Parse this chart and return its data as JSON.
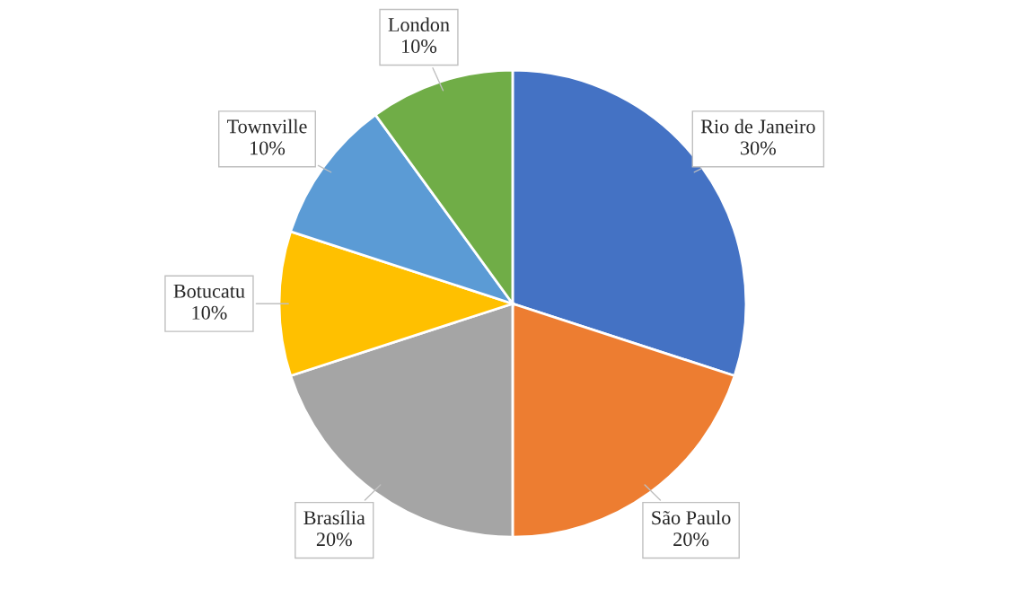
{
  "chart_data": {
    "type": "pie",
    "categories": [
      "Rio de Janeiro",
      "São Paulo",
      "Brasília",
      "Botucatu",
      "Townville",
      "London"
    ],
    "values": [
      30,
      20,
      20,
      10,
      10,
      10
    ],
    "colors": [
      "#4472c4",
      "#ed7d31",
      "#a5a5a5",
      "#ffc000",
      "#5b9bd5",
      "#70ad47"
    ],
    "value_labels": [
      "30%",
      "20%",
      "20%",
      "10%",
      "10%",
      "10%"
    ]
  }
}
